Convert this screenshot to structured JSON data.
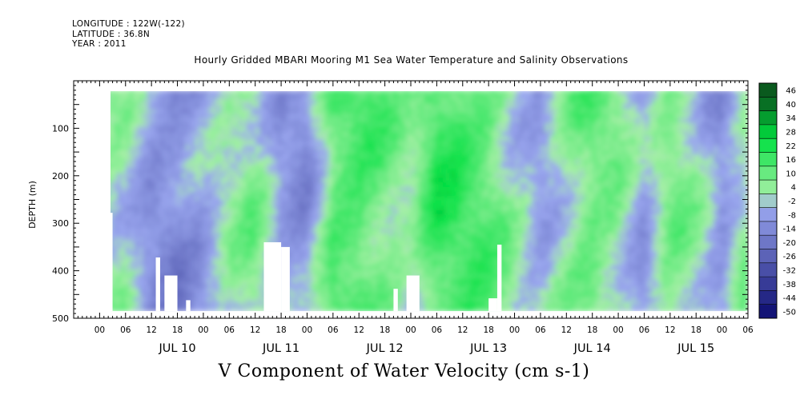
{
  "header": {
    "longitude": "LONGITUDE : 122W(-122)",
    "latitude": "LATITUDE : 36.8N",
    "year": "YEAR : 2011"
  },
  "chart_data": {
    "type": "heatmap",
    "title": "Hourly Gridded MBARI Mooring M1 Sea Water Temperature and Salinity Observations",
    "variable_label": "V Component of Water Velocity (cm s-1)",
    "ylabel": "DEPTH (m)",
    "xlabel": "",
    "ylim": [
      500,
      0
    ],
    "y_ticks": [
      100,
      200,
      300,
      400,
      500
    ],
    "xlim_hours": [
      -12,
      144
    ],
    "x_hour_ticks": [
      "00",
      "06",
      "12",
      "18",
      "00",
      "06",
      "12",
      "18",
      "00",
      "06",
      "12",
      "18",
      "00",
      "06",
      "12",
      "18",
      "00",
      "06",
      "12",
      "18",
      "00",
      "06",
      "12",
      "18",
      "00",
      "06"
    ],
    "x_day_labels": [
      "JUL 10",
      "JUL 11",
      "JUL 12",
      "JUL 13",
      "JUL 14",
      "JUL 15"
    ],
    "data_extent_hours": [
      -6,
      144
    ],
    "data_extent_depth_m": [
      20,
      485
    ],
    "colorbar": {
      "levels": [
        -50,
        -44,
        -38,
        -32,
        -26,
        -20,
        -14,
        -8,
        -2,
        4,
        10,
        16,
        22,
        28,
        34,
        40,
        46
      ],
      "label_values": [
        "46",
        "40",
        "34",
        "28",
        "22",
        "16",
        "10",
        "4",
        "-2",
        "-8",
        "-14",
        "-20",
        "-26",
        "-32",
        "-38",
        "-44",
        "-50"
      ],
      "negative_color": "#0a0a6e",
      "mid_negative_color": "#9ba8f0",
      "mid_positive_color": "#a6f0a6",
      "positive_color": "#00e040",
      "max_color": "#0a5a1e"
    },
    "v_velocity_profile": {
      "description_hours": [
        -6,
        0,
        6,
        12,
        18,
        24,
        30,
        36,
        42,
        48,
        54,
        60,
        66,
        72,
        78,
        84,
        90,
        96,
        102,
        108,
        114,
        120,
        126,
        132,
        138,
        144
      ],
      "column_mean_cm_s": [
        6,
        4,
        -8,
        -10,
        -6,
        4,
        8,
        -6,
        -9,
        16,
        18,
        12,
        4,
        20,
        18,
        14,
        4,
        -4,
        6,
        14,
        8,
        -6,
        10,
        4,
        -8,
        8
      ]
    },
    "missing_data_hours_depths": [
      {
        "hours": [
          -4,
          -3
        ],
        "depth_m": [
          278,
          485
        ]
      },
      {
        "hours": [
          7,
          8
        ],
        "depth_m": [
          372,
          485
        ]
      },
      {
        "hours": [
          9,
          12
        ],
        "depth_m": [
          410,
          485
        ]
      },
      {
        "hours": [
          14,
          15
        ],
        "depth_m": [
          462,
          485
        ]
      },
      {
        "hours": [
          32,
          36
        ],
        "depth_m": [
          340,
          485
        ]
      },
      {
        "hours": [
          36,
          38
        ],
        "depth_m": [
          350,
          485
        ]
      },
      {
        "hours": [
          62,
          63
        ],
        "depth_m": [
          438,
          485
        ]
      },
      {
        "hours": [
          65,
          68
        ],
        "depth_m": [
          410,
          485
        ]
      },
      {
        "hours": [
          84,
          86
        ],
        "depth_m": [
          458,
          485
        ]
      },
      {
        "hours": [
          86,
          87
        ],
        "depth_m": [
          345,
          485
        ]
      }
    ]
  }
}
